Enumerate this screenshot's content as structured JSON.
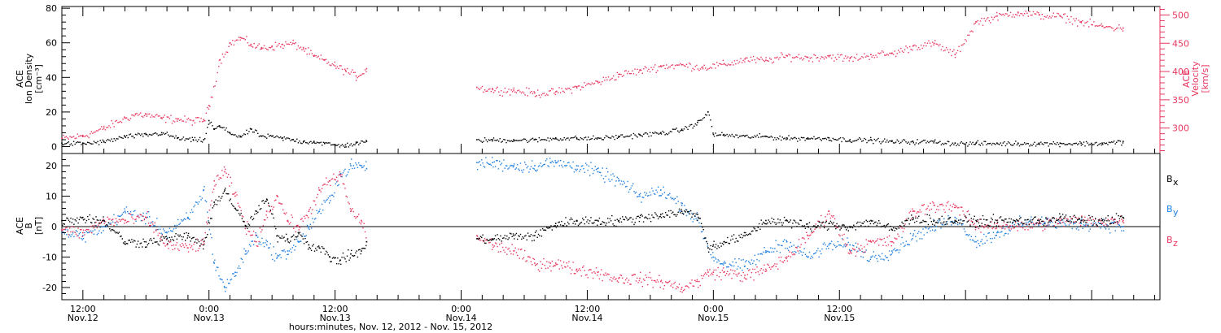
{
  "chart_data": [
    {
      "type": "scatter",
      "panel": "top",
      "ylabel_lines": [
        "ACE",
        "Ion Density",
        "[cm⁻³]"
      ],
      "y2label_lines": [
        "ACE",
        "Velocity",
        "[km/s]"
      ],
      "ylim": [
        -4,
        81
      ],
      "yticks": [
        0,
        20,
        40,
        60,
        80
      ],
      "y2lim": [
        255,
        515
      ],
      "y2ticks": [
        300,
        350,
        400,
        450,
        500
      ],
      "x_unit": "hours since Nov.12 00:00",
      "data_gap": [
        39.0,
        49.5
      ],
      "series": [
        {
          "color": "#000000",
          "axis": "left",
          "x": [
            10.0,
            12.0,
            14.0,
            16.0,
            18.0,
            19.5,
            21.0,
            22.5,
            23.5,
            24.0,
            24.5,
            25.0,
            26.0,
            27.0,
            28.0,
            29.0,
            30.0,
            31.0,
            32.0,
            33.0,
            34.0,
            35.0,
            36.0,
            37.0,
            38.0,
            39.0,
            49.5,
            51.0,
            53.0,
            55.0,
            57.0,
            59.0,
            61.0,
            63.0,
            65.0,
            67.0,
            69.0,
            70.5,
            71.5,
            72.0,
            73.0,
            75.0,
            77.0,
            79.0,
            81.0,
            83.0,
            85.0,
            87.0,
            89.0,
            91.0,
            93.0,
            95.0,
            97.0,
            99.0,
            101.0,
            103.0,
            105.0,
            107.0,
            109.0,
            111.0
          ],
          "y": [
            2,
            2,
            3,
            6,
            7,
            8,
            5,
            4,
            4,
            15,
            10,
            12,
            8,
            6,
            10,
            6,
            6,
            5,
            4,
            3,
            3,
            2,
            1,
            1,
            2,
            3,
            4,
            4,
            4,
            4,
            5,
            5,
            5,
            6,
            7,
            8,
            10,
            14,
            20,
            7,
            7,
            6,
            6,
            5,
            5,
            5,
            4,
            4,
            3,
            3,
            3,
            2,
            2,
            2,
            2,
            2,
            2,
            2,
            2,
            3
          ]
        },
        {
          "color": "#e8375f",
          "axis": "right",
          "x": [
            10.0,
            12.0,
            14.0,
            16.0,
            17.0,
            18.0,
            19.5,
            21.0,
            22.5,
            23.5,
            24.0,
            25.0,
            26.0,
            27.0,
            28.0,
            29.0,
            30.0,
            31.0,
            32.0,
            33.0,
            34.0,
            35.0,
            36.0,
            37.0,
            38.0,
            39.0,
            49.5,
            51.0,
            53.0,
            55.0,
            57.0,
            59.0,
            61.0,
            63.0,
            65.0,
            67.0,
            69.0,
            71.0,
            73.0,
            75.0,
            77.0,
            79.0,
            81.0,
            83.0,
            85.0,
            87.0,
            89.0,
            91.0,
            93.0,
            95.0,
            97.0,
            99.0,
            101.0,
            103.0,
            105.0,
            107.0,
            109.0,
            111.0
          ],
          "y": [
            282,
            287,
            300,
            318,
            325,
            324,
            318,
            316,
            313,
            315,
            340,
            420,
            450,
            460,
            448,
            442,
            445,
            448,
            450,
            440,
            427,
            420,
            410,
            402,
            392,
            405,
            372,
            368,
            367,
            362,
            364,
            373,
            382,
            395,
            402,
            410,
            412,
            408,
            413,
            422,
            420,
            428,
            425,
            428,
            423,
            430,
            432,
            445,
            450,
            430,
            488,
            498,
            505,
            500,
            498,
            488,
            480,
            477
          ]
        }
      ]
    },
    {
      "type": "scatter",
      "panel": "bottom",
      "ylabel_lines": [
        "ACE",
        "B",
        "[nT]"
      ],
      "ylim": [
        -24,
        24
      ],
      "yticks": [
        -20,
        -10,
        0,
        10,
        20
      ],
      "zero_line": true,
      "xlabel": "hours:minutes, Nov. 12, 2012 - Nov. 15, 2012",
      "x_ticks": [
        {
          "x": 12,
          "time": "12:00",
          "date": "Nov.12"
        },
        {
          "x": 24,
          "time": "0:00",
          "date": "Nov.13"
        },
        {
          "x": 36,
          "time": "12:00",
          "date": "Nov.13"
        },
        {
          "x": 48,
          "time": "0:00",
          "date": "Nov.14"
        },
        {
          "x": 60,
          "time": "12:00",
          "date": "Nov.14"
        },
        {
          "x": 72,
          "time": "0:00",
          "date": "Nov.15"
        },
        {
          "x": 84,
          "time": "12:00",
          "date": "Nov.15"
        }
      ],
      "xlim": [
        10.0,
        114.5
      ],
      "data_gap": [
        39.0,
        49.5
      ],
      "legend": [
        {
          "label": "B",
          "sub": "x",
          "color": "#000000"
        },
        {
          "label": "B",
          "sub": "y",
          "color": "#1f7fe0"
        },
        {
          "label": "B",
          "sub": "z",
          "color": "#e8375f"
        }
      ],
      "series": [
        {
          "color": "#000000",
          "x": [
            10.0,
            12.0,
            14.0,
            16.0,
            18.0,
            20.0,
            22.0,
            23.5,
            24.5,
            25.5,
            26.5,
            27.5,
            28.5,
            29.5,
            30.5,
            31.5,
            32.5,
            33.5,
            34.5,
            35.5,
            36.5,
            37.5,
            38.5,
            39.0,
            49.5,
            51.0,
            53.0,
            55.0,
            57.0,
            59.0,
            61.0,
            63.0,
            65.0,
            67.0,
            69.0,
            70.5,
            71.5,
            72.0,
            73.0,
            75.0,
            77.0,
            79.0,
            81.0,
            83.0,
            85.0,
            87.0,
            89.0,
            91.0,
            93.0,
            95.0,
            97.0,
            99.0,
            101.0,
            103.0,
            105.0,
            107.0,
            109.0,
            111.0
          ],
          "y": [
            2,
            3,
            2,
            -5,
            -5,
            -4,
            -3,
            -6,
            8,
            12,
            6,
            0,
            5,
            9,
            -3,
            -4,
            -2,
            -6,
            -7,
            -10,
            -11,
            -9,
            -8,
            -5,
            -4,
            -4,
            -3,
            -3,
            1,
            2,
            2,
            2,
            3,
            4,
            5,
            4,
            -7,
            -6,
            -5,
            -3,
            2,
            2,
            0,
            1,
            0,
            2,
            -1,
            3,
            2,
            2,
            2,
            2,
            2,
            2,
            3,
            2,
            2,
            3
          ]
        },
        {
          "color": "#1f7fe0",
          "x": [
            10.0,
            12.0,
            14.0,
            16.0,
            18.0,
            20.0,
            22.0,
            23.5,
            24.5,
            25.5,
            26.5,
            27.5,
            28.5,
            29.5,
            30.5,
            31.5,
            32.5,
            33.5,
            34.5,
            35.5,
            36.5,
            37.5,
            38.5,
            39.0,
            49.5,
            51.0,
            53.0,
            55.0,
            56.5,
            57.0,
            59.0,
            61.0,
            63.0,
            65.0,
            67.0,
            69.0,
            70.5,
            71.5,
            72.0,
            73.0,
            75.0,
            77.0,
            79.0,
            81.0,
            83.0,
            85.0,
            87.0,
            89.0,
            91.0,
            93.0,
            95.0,
            97.0,
            99.0,
            101.0,
            103.0,
            105.0,
            107.0,
            109.0,
            111.0
          ],
          "y": [
            -2,
            -3,
            0,
            5,
            3,
            -2,
            3,
            12,
            -12,
            -20,
            -15,
            -8,
            -3,
            -6,
            -10,
            -8,
            -5,
            0,
            5,
            10,
            17,
            20,
            20,
            19,
            21,
            21,
            20,
            20,
            21,
            21,
            20,
            18,
            15,
            10,
            12,
            7,
            2,
            -7,
            -10,
            -12,
            -13,
            -8,
            -5,
            -10,
            -6,
            -6,
            -10,
            -8,
            -3,
            0,
            3,
            -5,
            -2,
            1,
            2,
            1,
            1,
            1,
            0
          ]
        },
        {
          "color": "#e8375f",
          "x": [
            10.0,
            12.0,
            14.0,
            16.0,
            18.0,
            20.0,
            22.0,
            23.5,
            24.5,
            25.5,
            26.5,
            27.5,
            28.5,
            29.5,
            30.5,
            31.5,
            32.5,
            33.5,
            34.5,
            35.5,
            36.5,
            37.5,
            38.5,
            39.0,
            49.5,
            51.0,
            53.0,
            55.0,
            56.5,
            57.0,
            59.0,
            61.0,
            63.0,
            65.0,
            67.0,
            69.0,
            70.5,
            71.5,
            72.0,
            73.0,
            75.0,
            77.0,
            79.0,
            81.0,
            83.0,
            85.0,
            87.0,
            89.0,
            91.0,
            93.0,
            95.0,
            97.0,
            99.0,
            101.0,
            103.0,
            105.0,
            107.0,
            109.0,
            111.0
          ],
          "y": [
            -1,
            -2,
            2,
            2,
            3,
            -6,
            -7,
            -5,
            15,
            18,
            10,
            0,
            -5,
            5,
            10,
            2,
            0,
            5,
            12,
            15,
            17,
            5,
            2,
            -5,
            -3,
            -6,
            -8,
            -12,
            -12,
            -12,
            -14,
            -15,
            -17,
            -17,
            -18,
            -20,
            -18,
            -15,
            -15,
            -15,
            -16,
            -14,
            -10,
            -3,
            5,
            -8,
            -5,
            -5,
            5,
            7,
            7,
            0,
            1,
            0,
            1,
            2,
            2,
            2,
            2
          ]
        }
      ]
    }
  ]
}
